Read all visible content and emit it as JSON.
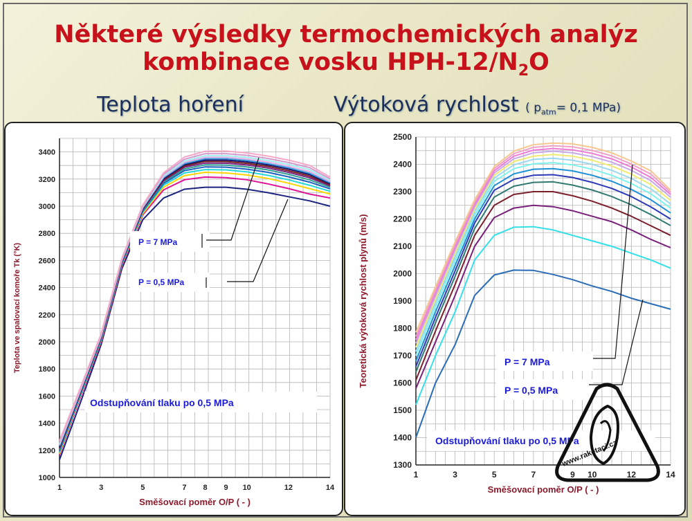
{
  "slide": {
    "title_line1": "Některé výsledky termochemických analýz",
    "title_line2_prefix": "kombinace vosku HPH-12/N",
    "title_line2_sub": "2",
    "title_line2_suffix": "O",
    "left_heading": "Teplota hoření",
    "right_heading": "Výtoková rychlost",
    "right_heading_note_open": "( p",
    "right_heading_note_sub": "atm",
    "right_heading_note_close": "= 0,1 MPa)",
    "watermark": "www.raketaci.cz"
  },
  "colors": {
    "grid": "#b4b4b4",
    "axis_label": "#8b1a2b",
    "annotation": "#1a1ad8",
    "series_left": [
      "#1a237e",
      "#e0149a",
      "#ffd400",
      "#25d6d6",
      "#1f5fbf",
      "#2e9e8e",
      "#7a2080",
      "#7a2020",
      "#10106a",
      "#3a9bd8",
      "#e8b0e6",
      "#a0f0f0",
      "#d59acd",
      "#f5a8c8"
    ],
    "series_right": [
      "#2b6cb8",
      "#33e0ea",
      "#7a1f7a",
      "#7a1f2b",
      "#2e7a72",
      "#2c3ab8",
      "#1e90d8",
      "#7ef2ee",
      "#9ad8f0",
      "#f0ea70",
      "#c8a8e8",
      "#f07ad8",
      "#f0a0c8",
      "#f5c890"
    ]
  },
  "chart_data": [
    {
      "type": "line",
      "title": "Teplota hoření",
      "xlabel": "Směšovací poměr O/P ( - )",
      "ylabel": "Teplota ve spalovací komoře Tk (°K)",
      "xlim": [
        1,
        14
      ],
      "ylim": [
        1000,
        3500
      ],
      "xticks": [
        1,
        3,
        5,
        7,
        8,
        9,
        10,
        12,
        14
      ],
      "yticks": [
        1000,
        1200,
        1400,
        1600,
        1800,
        2000,
        2200,
        2400,
        2600,
        2800,
        3000,
        3200,
        3400
      ],
      "grid": true,
      "x": [
        1,
        2,
        3,
        4,
        5,
        6,
        7,
        8,
        9,
        10,
        11,
        12,
        13,
        14
      ],
      "series": [
        {
          "values": [
            1130,
            1550,
            1980,
            2540,
            2900,
            3060,
            3125,
            3140,
            3140,
            3125,
            3100,
            3070,
            3040,
            3000
          ]
        },
        {
          "values": [
            1165,
            1590,
            2000,
            2560,
            2935,
            3120,
            3195,
            3215,
            3210,
            3195,
            3165,
            3130,
            3090,
            3060
          ]
        },
        {
          "values": [
            1175,
            1600,
            2010,
            2570,
            2945,
            3140,
            3225,
            3250,
            3245,
            3230,
            3205,
            3170,
            3130,
            3090
          ]
        },
        {
          "values": [
            1185,
            1605,
            2015,
            2575,
            2955,
            3155,
            3245,
            3270,
            3268,
            3253,
            3228,
            3195,
            3155,
            3110
          ]
        },
        {
          "values": [
            1195,
            1612,
            2020,
            2580,
            2962,
            3168,
            3262,
            3290,
            3288,
            3273,
            3250,
            3217,
            3178,
            3128
          ]
        },
        {
          "values": [
            1205,
            1618,
            2025,
            2585,
            2968,
            3178,
            3275,
            3305,
            3303,
            3290,
            3268,
            3235,
            3195,
            3140
          ]
        },
        {
          "values": [
            1212,
            1623,
            2030,
            2588,
            2974,
            3188,
            3287,
            3318,
            3317,
            3304,
            3282,
            3250,
            3210,
            3150
          ]
        },
        {
          "values": [
            1220,
            1628,
            2033,
            2592,
            2980,
            3196,
            3297,
            3330,
            3329,
            3316,
            3294,
            3262,
            3222,
            3158
          ]
        },
        {
          "values": [
            1226,
            1632,
            2037,
            2595,
            2984,
            3203,
            3306,
            3340,
            3340,
            3327,
            3305,
            3274,
            3234,
            3166
          ]
        },
        {
          "values": [
            1232,
            1636,
            2040,
            2598,
            2988,
            3210,
            3314,
            3350,
            3350,
            3337,
            3315,
            3284,
            3244,
            3173
          ]
        },
        {
          "values": [
            1240,
            1640,
            2044,
            2602,
            2992,
            3217,
            3323,
            3360,
            3360,
            3348,
            3326,
            3295,
            3256,
            3182
          ]
        },
        {
          "values": [
            1248,
            1645,
            2048,
            2606,
            2997,
            3225,
            3333,
            3372,
            3372,
            3360,
            3338,
            3308,
            3270,
            3192
          ]
        },
        {
          "values": [
            1258,
            1651,
            2053,
            2610,
            3002,
            3235,
            3346,
            3387,
            3387,
            3375,
            3352,
            3322,
            3285,
            3202
          ]
        },
        {
          "values": [
            1270,
            1660,
            2060,
            2616,
            3008,
            3246,
            3362,
            3405,
            3406,
            3393,
            3370,
            3340,
            3302,
            3215
          ]
        }
      ],
      "annotations": [
        "P = 7 MPa",
        "P = 0,5 MPa",
        "Odstupňování tlaku po 0,5 MPa"
      ]
    },
    {
      "type": "line",
      "title": "Výtoková rychlost",
      "xlabel": "Směšovací poměr O/P ( - )",
      "ylabel": "Teoretická výtoková rychlost plynů (m/s)",
      "xlim": [
        1,
        14
      ],
      "ylim": [
        1300,
        2500
      ],
      "xticks": [
        1,
        3,
        5,
        7,
        9,
        10,
        12,
        14
      ],
      "yticks": [
        1300,
        1400,
        1500,
        1600,
        1700,
        1800,
        1900,
        2000,
        2100,
        2200,
        2300,
        2400,
        2500
      ],
      "grid": true,
      "x": [
        1,
        2,
        3,
        4,
        5,
        6,
        7,
        8,
        9,
        10,
        11,
        12,
        13,
        14
      ],
      "series": [
        {
          "values": [
            1400,
            1600,
            1740,
            1920,
            1995,
            2013,
            2012,
            1997,
            1978,
            1955,
            1935,
            1910,
            1890,
            1870
          ]
        },
        {
          "values": [
            1520,
            1700,
            1860,
            2050,
            2140,
            2170,
            2172,
            2160,
            2140,
            2120,
            2100,
            2075,
            2050,
            2020
          ]
        },
        {
          "values": [
            1580,
            1750,
            1920,
            2100,
            2205,
            2240,
            2250,
            2245,
            2230,
            2210,
            2190,
            2160,
            2125,
            2095
          ]
        },
        {
          "values": [
            1610,
            1790,
            1960,
            2140,
            2250,
            2290,
            2300,
            2300,
            2285,
            2265,
            2240,
            2210,
            2175,
            2140
          ]
        },
        {
          "values": [
            1640,
            1820,
            1990,
            2165,
            2280,
            2320,
            2334,
            2336,
            2324,
            2306,
            2282,
            2252,
            2216,
            2176
          ]
        },
        {
          "values": [
            1660,
            1840,
            2010,
            2185,
            2305,
            2345,
            2360,
            2362,
            2352,
            2334,
            2312,
            2282,
            2244,
            2200
          ]
        },
        {
          "values": [
            1680,
            1860,
            2030,
            2200,
            2322,
            2365,
            2382,
            2384,
            2376,
            2360,
            2338,
            2308,
            2270,
            2222
          ]
        },
        {
          "values": [
            1700,
            1878,
            2048,
            2214,
            2338,
            2384,
            2402,
            2406,
            2398,
            2382,
            2360,
            2330,
            2292,
            2240
          ]
        },
        {
          "values": [
            1715,
            1893,
            2062,
            2226,
            2350,
            2398,
            2418,
            2422,
            2415,
            2400,
            2378,
            2348,
            2310,
            2255
          ]
        },
        {
          "values": [
            1730,
            1906,
            2075,
            2236,
            2360,
            2410,
            2430,
            2436,
            2430,
            2415,
            2394,
            2364,
            2326,
            2268
          ]
        },
        {
          "values": [
            1745,
            1918,
            2086,
            2245,
            2368,
            2420,
            2442,
            2448,
            2442,
            2428,
            2408,
            2378,
            2340,
            2280
          ]
        },
        {
          "values": [
            1758,
            1930,
            2096,
            2253,
            2376,
            2430,
            2452,
            2458,
            2453,
            2440,
            2420,
            2390,
            2352,
            2290
          ]
        },
        {
          "values": [
            1770,
            1940,
            2106,
            2261,
            2384,
            2439,
            2462,
            2468,
            2464,
            2451,
            2431,
            2401,
            2364,
            2298
          ]
        },
        {
          "values": [
            1785,
            1952,
            2116,
            2270,
            2392,
            2448,
            2472,
            2478,
            2475,
            2462,
            2442,
            2412,
            2376,
            2305
          ]
        }
      ],
      "annotations": [
        "P = 7 MPa",
        "P = 0,5 MPa",
        "Odstupňování tlaku po 0,5 MPa"
      ]
    }
  ]
}
